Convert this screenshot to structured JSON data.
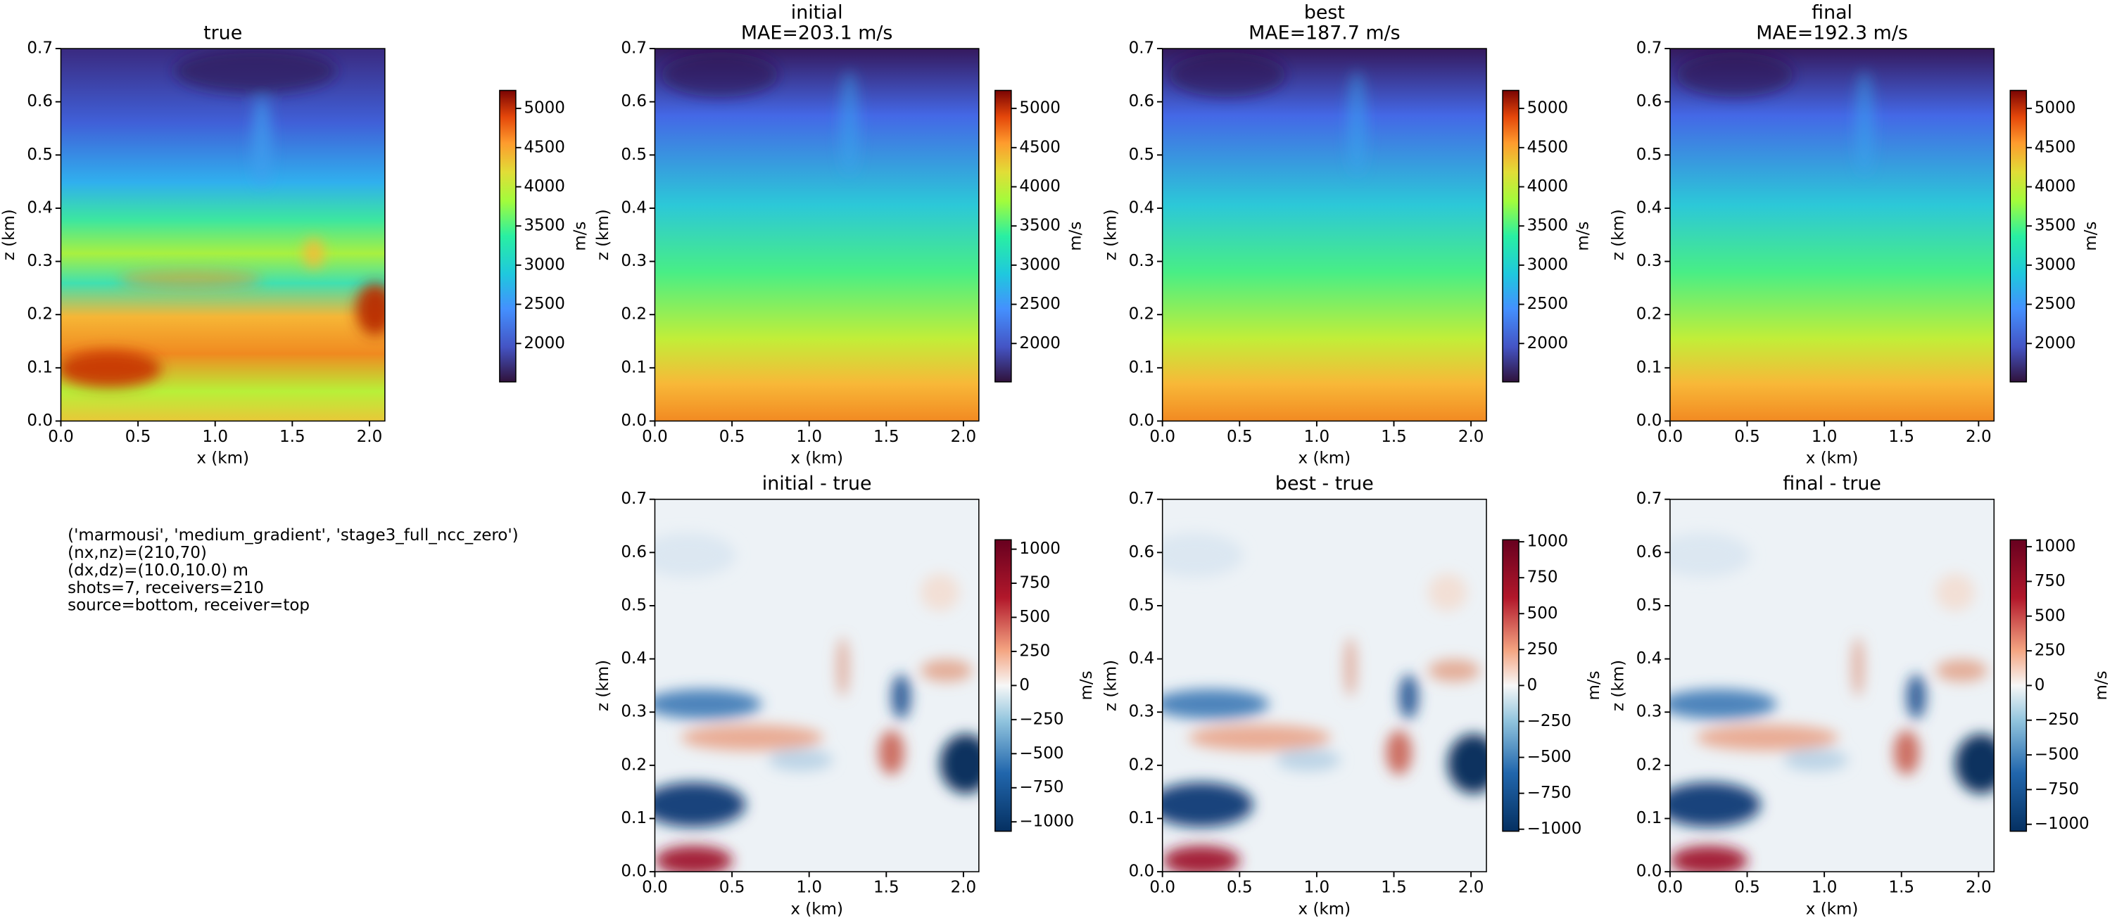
{
  "chart_data": [
    {
      "type": "heatmap",
      "title": "true",
      "xlabel": "x (km)",
      "ylabel": "z (km)",
      "xlim": [
        0,
        2.1
      ],
      "ylim": [
        0.7,
        0
      ],
      "xticks": [
        {
          "value": 0,
          "label": "0.0"
        },
        0.5,
        {
          "value": 1,
          "label": "1.0"
        },
        1.5,
        {
          "value": 2,
          "label": "2.0"
        }
      ],
      "yticks": [
        {
          "value": 0,
          "label": "0.0"
        },
        0.1,
        0.2,
        0.3,
        0.4,
        0.5,
        0.6,
        0.7
      ],
      "colormap": "turbo",
      "colorbar": {
        "label": "m/s",
        "lim": [
          1510,
          5230
        ],
        "ticks": [
          2000,
          2500,
          3000,
          3500,
          4000,
          4500,
          5000
        ]
      },
      "annotation": [
        "('marmousi', 'medium_gradient', 'stage3_full_ncc_zero')",
        "(nx,nz)=(210,70)",
        "(dx,dz)=(10.0,10.0) m",
        "shots=7, receivers=210",
        "source=bottom, receiver=top"
      ]
    },
    {
      "type": "heatmap",
      "title": "initial",
      "subtitle": "MAE=203.1 m/s",
      "xlabel": "x (km)",
      "ylabel": "z (km)",
      "xlim": [
        0,
        2.1
      ],
      "ylim": [
        0.7,
        0
      ],
      "xticks": [
        {
          "value": 0,
          "label": "0.0"
        },
        0.5,
        {
          "value": 1,
          "label": "1.0"
        },
        1.5,
        {
          "value": 2,
          "label": "2.0"
        }
      ],
      "yticks": [
        {
          "value": 0,
          "label": "0.0"
        },
        0.1,
        0.2,
        0.3,
        0.4,
        0.5,
        0.6,
        0.7
      ],
      "colormap": "turbo",
      "colorbar": {
        "label": "m/s",
        "lim": [
          1510,
          5230
        ],
        "ticks": [
          2000,
          2500,
          3000,
          3500,
          4000,
          4500,
          5000
        ]
      }
    },
    {
      "type": "heatmap",
      "title": "best",
      "subtitle": "MAE=187.7 m/s",
      "xlabel": "x (km)",
      "ylabel": "z (km)",
      "xlim": [
        0,
        2.1
      ],
      "ylim": [
        0.7,
        0
      ],
      "xticks": [
        {
          "value": 0,
          "label": "0.0"
        },
        0.5,
        {
          "value": 1,
          "label": "1.0"
        },
        1.5,
        {
          "value": 2,
          "label": "2.0"
        }
      ],
      "yticks": [
        {
          "value": 0,
          "label": "0.0"
        },
        0.1,
        0.2,
        0.3,
        0.4,
        0.5,
        0.6,
        0.7
      ],
      "colormap": "turbo",
      "colorbar": {
        "label": "m/s",
        "lim": [
          1510,
          5230
        ],
        "ticks": [
          2000,
          2500,
          3000,
          3500,
          4000,
          4500,
          5000
        ]
      }
    },
    {
      "type": "heatmap",
      "title": "final",
      "subtitle": "MAE=192.3 m/s",
      "xlabel": "x (km)",
      "ylabel": "z (km)",
      "xlim": [
        0,
        2.1
      ],
      "ylim": [
        0.7,
        0
      ],
      "xticks": [
        {
          "value": 0,
          "label": "0.0"
        },
        0.5,
        {
          "value": 1,
          "label": "1.0"
        },
        1.5,
        {
          "value": 2,
          "label": "2.0"
        }
      ],
      "yticks": [
        {
          "value": 0,
          "label": "0.0"
        },
        0.1,
        0.2,
        0.3,
        0.4,
        0.5,
        0.6,
        0.7
      ],
      "colormap": "turbo",
      "colorbar": {
        "label": "m/s",
        "lim": [
          1510,
          5230
        ],
        "ticks": [
          2000,
          2500,
          3000,
          3500,
          4000,
          4500,
          5000
        ]
      }
    },
    {
      "type": "heatmap",
      "title": "initial - true",
      "xlabel": "x (km)",
      "ylabel": "z (km)",
      "xlim": [
        0,
        2.1
      ],
      "ylim": [
        0.7,
        0
      ],
      "xticks": [
        {
          "value": 0,
          "label": "0.0"
        },
        0.5,
        {
          "value": 1,
          "label": "1.0"
        },
        1.5,
        {
          "value": 2,
          "label": "2.0"
        }
      ],
      "yticks": [
        {
          "value": 0,
          "label": "0.0"
        },
        0.1,
        0.2,
        0.3,
        0.4,
        0.5,
        0.6,
        0.7
      ],
      "colormap": "RdBu_r",
      "colorbar": {
        "label": "m/s",
        "lim": [
          -1069,
          1069
        ],
        "ticks": [
          {
            "value": -1000,
            "label": "−1000"
          },
          {
            "value": -750,
            "label": "−750"
          },
          {
            "value": -500,
            "label": "−500"
          },
          {
            "value": -250,
            "label": "−250"
          },
          0,
          250,
          500,
          750,
          1000
        ]
      }
    },
    {
      "type": "heatmap",
      "title": "best - true",
      "xlabel": "x (km)",
      "ylabel": "z (km)",
      "xlim": [
        0,
        2.1
      ],
      "ylim": [
        0.7,
        0
      ],
      "xticks": [
        {
          "value": 0,
          "label": "0.0"
        },
        0.5,
        {
          "value": 1,
          "label": "1.0"
        },
        1.5,
        {
          "value": 2,
          "label": "2.0"
        }
      ],
      "yticks": [
        {
          "value": 0,
          "label": "0.0"
        },
        0.1,
        0.2,
        0.3,
        0.4,
        0.5,
        0.6,
        0.7
      ],
      "colormap": "RdBu_r",
      "colorbar": {
        "label": "m/s",
        "lim": [
          -1014,
          1014
        ],
        "ticks": [
          {
            "value": -1000,
            "label": "−1000"
          },
          {
            "value": -750,
            "label": "−750"
          },
          {
            "value": -500,
            "label": "−500"
          },
          {
            "value": -250,
            "label": "−250"
          },
          0,
          250,
          500,
          750,
          1000
        ]
      }
    },
    {
      "type": "heatmap",
      "title": "final - true",
      "xlabel": "x (km)",
      "ylabel": "z (km)",
      "xlim": [
        0,
        2.1
      ],
      "ylim": [
        0.7,
        0
      ],
      "xticks": [
        {
          "value": 0,
          "label": "0.0"
        },
        0.5,
        {
          "value": 1,
          "label": "1.0"
        },
        1.5,
        {
          "value": 2,
          "label": "2.0"
        }
      ],
      "yticks": [
        {
          "value": 0,
          "label": "0.0"
        },
        0.1,
        0.2,
        0.3,
        0.4,
        0.5,
        0.6,
        0.7
      ],
      "colormap": "RdBu_r",
      "colorbar": {
        "label": "m/s",
        "lim": [
          -1050,
          1050
        ],
        "ticks": [
          {
            "value": -1000,
            "label": "−1000"
          },
          {
            "value": -750,
            "label": "−750"
          },
          {
            "value": -500,
            "label": "−500"
          },
          {
            "value": -250,
            "label": "−250"
          },
          0,
          250,
          500,
          750,
          1000
        ]
      }
    }
  ]
}
